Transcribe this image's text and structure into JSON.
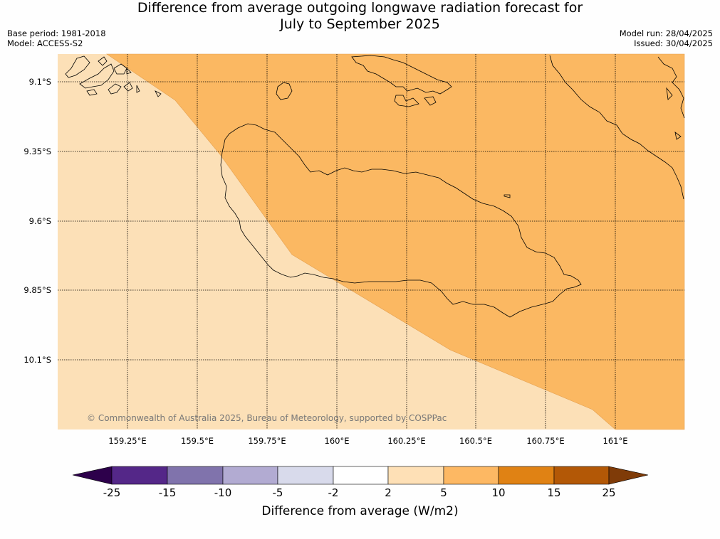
{
  "title": {
    "line1": "Difference from average outgoing longwave radiation forecast for",
    "line2": "July to September 2025"
  },
  "meta": {
    "base_period": "Base period: 1981-2018",
    "model": "Model: ACCESS-S2",
    "model_run": "Model run: 28/04/2025",
    "issued": "Issued: 30/04/2025"
  },
  "map": {
    "lat_labels": [
      "9.1°S",
      "9.35°S",
      "9.6°S",
      "9.85°S",
      "10.1°S"
    ],
    "lon_labels": [
      "159.25°E",
      "159.5°E",
      "159.75°E",
      "160°E",
      "160.25°E",
      "160.5°E",
      "160.75°E",
      "161°E"
    ],
    "copyright": "© Commonwealth of Australia 2025, Bureau of Meteorology, supported by COSPPac",
    "fill_colors": {
      "class_2_5": "#fce0b7",
      "class_5_10": "#fbb862"
    }
  },
  "colorbar": {
    "title": "Difference from average (W/m2)",
    "tick_labels": [
      "-25",
      "-15",
      "-10",
      "-5",
      "-2",
      "2",
      "5",
      "10",
      "15",
      "25"
    ],
    "colors": [
      "#2d004b",
      "#542788",
      "#8073ac",
      "#b2abd2",
      "#d8daeb",
      "#ffffff",
      "#fee0b6",
      "#fdb863",
      "#e08214",
      "#b35806",
      "#7f3b08"
    ]
  }
}
